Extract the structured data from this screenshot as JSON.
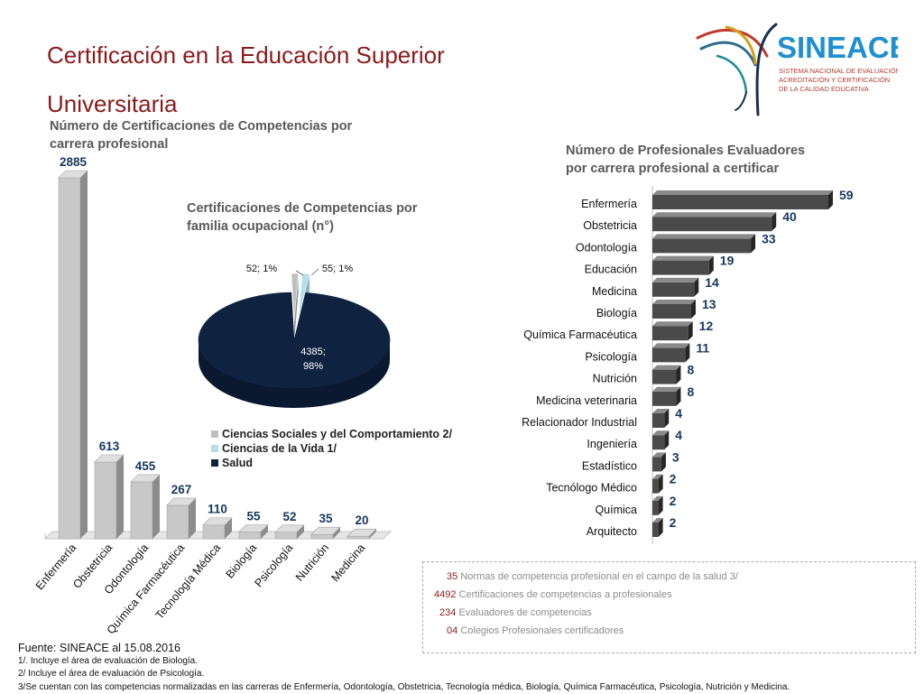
{
  "title": "Certificación en la Educación Superior Universitaria",
  "logo": {
    "name": "SINEACE",
    "subtitle_lines": [
      "SISTEMA NACIONAL DE EVALUACIÓN,",
      "ACREDITACIÓN Y CERTIFICACIÓN",
      "DE LA CALIDAD EDUCATIVA"
    ]
  },
  "charts_titles": {
    "bar_left": [
      "Número de Certificaciones de Competencias por",
      "carrera profesional"
    ],
    "pie": [
      "Certificaciones de Competencias por",
      "familia ocupacional  (n°)"
    ],
    "bar_right": [
      "Número de Profesionales Evaluadores",
      "por carrera profesional a certificar"
    ]
  },
  "colors": {
    "title": "#8b1a1a",
    "bar_left": "#c8c8c8",
    "bar_right": "#4a4a4a",
    "label_blue": "#17375e",
    "pie_salud": "#0f2340",
    "pie_sociales": "#bfbfbf",
    "pie_vida": "#b7dee8"
  },
  "chart_data": [
    {
      "type": "bar",
      "orientation": "vertical",
      "categories": [
        "Enfermería",
        "Obstetricia",
        "Odontología",
        "Química Farmacéutica",
        "Tecnología Médica",
        "Biología",
        "Psicología",
        "Nutrición",
        "Medicina"
      ],
      "values": [
        2885,
        613,
        455,
        267,
        110,
        55,
        52,
        35,
        20
      ],
      "ylim": [
        0,
        2885
      ],
      "grid": false,
      "legend": "none"
    },
    {
      "type": "pie",
      "labels": [
        "Ciencias Sociales y del Comportamiento 2/",
        "Ciencias de la Vida 1/",
        "Salud"
      ],
      "values": [
        52,
        55,
        4385
      ],
      "percents": [
        1,
        1,
        98
      ],
      "data_labels": [
        "52; 1%",
        "55; 1%",
        "4385;\n98%"
      ],
      "legend": "bottom"
    },
    {
      "type": "bar",
      "orientation": "horizontal",
      "categories": [
        "Enfermería",
        "Obstetricia",
        "Odontología",
        "Educación",
        "Medicina",
        "Biología",
        "Química Farmacéutica",
        "Psicología",
        "Nutrición",
        "Medicina veterinaria",
        "Relacionador Industrial",
        "Ingeniería ",
        "Estadístico",
        "Tecnólogo Médico",
        "Química",
        "Arquitecto"
      ],
      "values": [
        59,
        40,
        33,
        19,
        14,
        13,
        12,
        11,
        8,
        8,
        4,
        4,
        3,
        2,
        2,
        2
      ],
      "xlim": [
        0,
        59
      ],
      "grid": false,
      "legend": "none"
    }
  ],
  "summary": [
    {
      "num": "35",
      "text": "Normas de competencia profesional en el campo de la salud 3/"
    },
    {
      "num": "4492",
      "text": "Certificaciones de competencias a profesionales"
    },
    {
      "num": "234",
      "text": "Evaluadores de competencias"
    },
    {
      "num": "04",
      "text": "Colegios Profesionales certificadores"
    }
  ],
  "source": {
    "main": "Fuente: SINEACE al  15.08.2016",
    "notes": [
      "1/. Incluye  el área de evaluación de Biología.",
      "2/ Incluye  el área  de evaluación de Psicología.",
      "3/Se cuentan con las competencias normalizadas en las carreras de Enfermería, Odontología, Obstetricia, Tecnología médica, Biología, Química Farmacéutica, Psicología, Nutrición y Medicina."
    ]
  }
}
